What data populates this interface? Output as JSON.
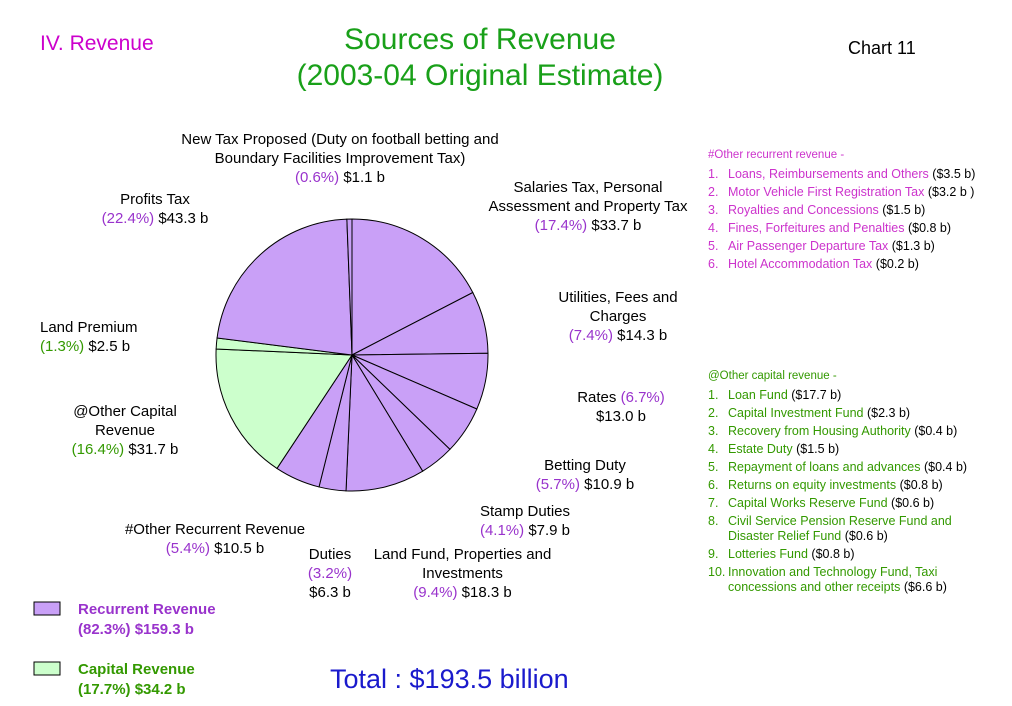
{
  "header": {
    "section": "IV. Revenue",
    "chart_no": "Chart 11"
  },
  "chart_data": {
    "type": "pie",
    "title": "Sources of Revenue",
    "subtitle": "(2003-04 Original Estimate)",
    "categories": [
      "Salaries Tax, Personal Assessment and Property Tax",
      "Utilities, Fees and Charges",
      "Rates",
      "Betting Duty",
      "Stamp Duties",
      "Land Fund, Properties and Investments",
      "Duties",
      "#Other Recurrent  Revenue",
      "@Other Capital Revenue",
      "Land Premium",
      "Profits Tax",
      "New Tax Proposed (Duty on football betting and Boundary Facilities Improvement Tax)"
    ],
    "values": [
      17.4,
      7.4,
      6.7,
      5.7,
      4.1,
      9.4,
      3.2,
      5.4,
      16.4,
      1.3,
      22.4,
      0.6
    ],
    "value_labels": [
      "(17.4%)",
      "(7.4%)",
      "(6.7%)",
      "(5.7%)",
      "(4.1%)",
      "(9.4%)",
      "(3.2%)",
      "(5.4%)",
      "(16.4%)",
      "(1.3%)",
      "(22.4%)",
      "(0.6%)"
    ],
    "amount_labels": [
      "$33.7 b",
      "$14.3 b",
      "$13.0 b",
      "$10.9 b",
      "$7.9 b",
      "$18.3 b",
      "$6.3 b",
      "$10.5 b",
      "$31.7 b",
      "$2.5 b",
      "$43.3 b",
      "$1.1 b"
    ],
    "colors": [
      "#c9a0f7",
      "#c9a0f7",
      "#c9a0f7",
      "#c9a0f7",
      "#c9a0f7",
      "#c9a0f7",
      "#c9a0f7",
      "#c9a0f7",
      "#ccffcc",
      "#ccffcc",
      "#c9a0f7",
      "#c9a0f7"
    ],
    "label_colors": [
      "#9933cc",
      "#9933cc",
      "#9933cc",
      "#9933cc",
      "#9933cc",
      "#9933cc",
      "#9933cc",
      "#9933cc",
      "#339900",
      "#339900",
      "#9933cc",
      "#9933cc"
    ],
    "legend": [
      {
        "name": "Recurrent Revenue",
        "label": "(82.3%) $159.3 b",
        "color": "#c9a0f7",
        "text_color": "#9933cc"
      },
      {
        "name": "Capital Revenue",
        "label": "(17.7%) $34.2 b",
        "color": "#ccffcc",
        "text_color": "#339900"
      }
    ],
    "total": "Total : $193.5 billion"
  },
  "notes": [
    {
      "title": "#Other recurrent revenue -",
      "color": "#cc33cc",
      "items": [
        {
          "num": "1.",
          "text": "Loans, Reimbursements and Others",
          "amount": "($3.5 b)"
        },
        {
          "num": "2.",
          "text": "Motor Vehicle First Registration Tax",
          "amount": "($3.2 b )"
        },
        {
          "num": "3.",
          "text": "Royalties and Concessions",
          "amount": "($1.5 b)"
        },
        {
          "num": "4.",
          "text": "Fines, Forfeitures and Penalties",
          "amount": "($0.8 b)"
        },
        {
          "num": "5.",
          "text": "Air Passenger Departure Tax",
          "amount": "($1.3 b)"
        },
        {
          "num": "6.",
          "text": "Hotel Accommodation Tax",
          "amount": "($0.2 b)"
        }
      ]
    },
    {
      "title": "@Other capital revenue -",
      "color": "#339900",
      "items": [
        {
          "num": "1.",
          "text": "Loan Fund",
          "amount": "($17.7 b)"
        },
        {
          "num": "2.",
          "text": "Capital Investment Fund",
          "amount": "($2.3 b)"
        },
        {
          "num": "3.",
          "text": "Recovery from Housing Authority",
          "amount": "($0.4 b)"
        },
        {
          "num": "4.",
          "text": "Estate Duty",
          "amount": "($1.5 b)"
        },
        {
          "num": "5.",
          "text": "Repayment of loans and advances",
          "amount": "($0.4 b)"
        },
        {
          "num": "6.",
          "text": "Returns on equity investments",
          "amount": "($0.8 b)"
        },
        {
          "num": "7.",
          "text": "Capital Works Reserve Fund",
          "amount": "($0.6 b)"
        },
        {
          "num": "8.",
          "text": "Civil Service Pension Reserve Fund and Disaster Relief Fund",
          "amount": "($0.6 b)"
        },
        {
          "num": "9.",
          "text": "Lotteries Fund",
          "amount": "($0.8 b)"
        },
        {
          "num": "10.",
          "text": "Innovation and Technology Fund, Taxi concessions and other receipts",
          "amount": "($6.6 b)"
        }
      ]
    }
  ]
}
